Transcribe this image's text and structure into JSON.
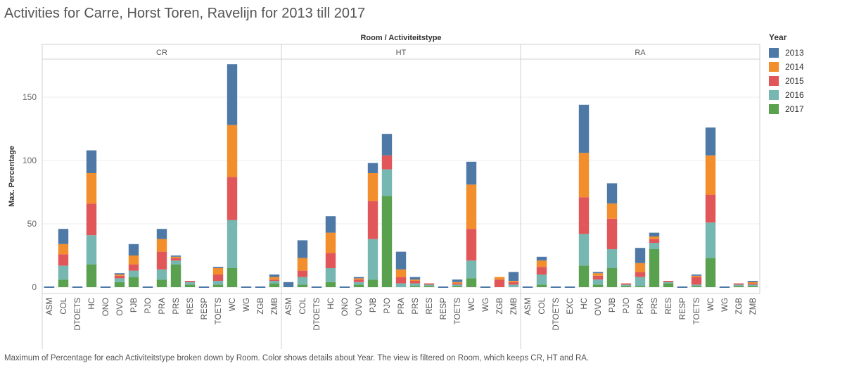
{
  "title": "Activities for Carre, Horst Toren, Ravelijn for 2013 till 2017",
  "caption": "Maximum of Percentage for each Activiteitstype broken down by Room.  Color shows details about Year. The view is filtered on Room, which keeps CR, HT and RA.",
  "legend": {
    "title": "Year",
    "items": [
      {
        "label": "2013",
        "color": "#4e79a7"
      },
      {
        "label": "2014",
        "color": "#f28e2b"
      },
      {
        "label": "2015",
        "color": "#e15759"
      },
      {
        "label": "2016",
        "color": "#76b7b2"
      },
      {
        "label": "2017",
        "color": "#59a14f"
      }
    ]
  },
  "chart_data": {
    "type": "bar",
    "stacked": true,
    "header": "Room / Activiteitstype",
    "ylabel": "Max. Percentage",
    "ylim": [
      -5,
      180
    ],
    "yticks": [
      0,
      50,
      100,
      150
    ],
    "grid": true,
    "legend_position": "right",
    "stack_order_bottom_to_top": [
      "2017",
      "2016",
      "2015",
      "2014",
      "2013"
    ],
    "panels": [
      {
        "room": "CR",
        "categories": [
          "ASM",
          "COL",
          "DTOETS",
          "HC",
          "ONO",
          "OVO",
          "PJB",
          "PJO",
          "PRA",
          "PRS",
          "RES",
          "RESP",
          "TOETS",
          "WC",
          "WG",
          "ZGB",
          "ZMB"
        ],
        "series": [
          {
            "name": "2017",
            "values": [
              0,
              6,
              0,
              18,
              0,
              4,
              8,
              0,
              6,
              18,
              2,
              0,
              2,
              15,
              0,
              0,
              3
            ]
          },
          {
            "name": "2016",
            "values": [
              0,
              11,
              0,
              23,
              0,
              3,
              5,
              0,
              8,
              3,
              2,
              0,
              3,
              38,
              0,
              0,
              2
            ]
          },
          {
            "name": "2015",
            "values": [
              0,
              9,
              0,
              25,
              0,
              2,
              5,
              0,
              14,
              2,
              1,
              0,
              5,
              34,
              0,
              0,
              1
            ]
          },
          {
            "name": "2014",
            "values": [
              0,
              8,
              0,
              24,
              0,
              1,
              7,
              0,
              10,
              1,
              0,
              0,
              5,
              41,
              0,
              0,
              2
            ]
          },
          {
            "name": "2013",
            "values": [
              0,
              12,
              0,
              18,
              0,
              1,
              9,
              0,
              8,
              1,
              0,
              0,
              1,
              48,
              0,
              0,
              2
            ]
          }
        ]
      },
      {
        "room": "HT",
        "categories": [
          "ASM",
          "COL",
          "DTOETS",
          "HC",
          "ONO",
          "OVO",
          "PJB",
          "PJO",
          "PRA",
          "PRS",
          "RES",
          "RESP",
          "TOETS",
          "WC",
          "WG",
          "ZGB",
          "ZMB"
        ],
        "series": [
          {
            "name": "2017",
            "values": [
              0,
              2,
              0,
              4,
              0,
              2,
              6,
              72,
              0,
              1,
              1,
              0,
              1,
              7,
              0,
              0,
              0
            ]
          },
          {
            "name": "2016",
            "values": [
              0,
              6,
              0,
              11,
              0,
              2,
              32,
              21,
              3,
              2,
              1,
              0,
              1,
              14,
              0,
              0,
              2
            ]
          },
          {
            "name": "2015",
            "values": [
              0,
              5,
              0,
              12,
              0,
              2,
              30,
              11,
              5,
              2,
              1,
              0,
              1,
              25,
              0,
              6,
              2
            ]
          },
          {
            "name": "2014",
            "values": [
              0,
              10,
              0,
              16,
              0,
              1,
              22,
              0,
              6,
              1,
              0,
              0,
              1,
              35,
              0,
              2,
              1
            ]
          },
          {
            "name": "2013",
            "values": [
              4,
              14,
              0,
              13,
              0,
              1,
              8,
              17,
              14,
              2,
              0,
              0,
              2,
              18,
              0,
              0,
              7
            ]
          }
        ]
      },
      {
        "room": "RA",
        "categories": [
          "ASM",
          "COL",
          "DTOETS",
          "EXC",
          "HC",
          "OVO",
          "PJB",
          "PJO",
          "PRA",
          "PRS",
          "RES",
          "RESP",
          "TOETS",
          "WC",
          "WG",
          "ZGB",
          "ZMB"
        ],
        "series": [
          {
            "name": "2017",
            "values": [
              0,
              2,
              0,
              0,
              17,
              2,
              15,
              1,
              1,
              30,
              3,
              0,
              1,
              23,
              0,
              1,
              1
            ]
          },
          {
            "name": "2016",
            "values": [
              0,
              8,
              0,
              0,
              25,
              4,
              15,
              1,
              7,
              5,
              1,
              0,
              1,
              28,
              0,
              1,
              1
            ]
          },
          {
            "name": "2015",
            "values": [
              0,
              6,
              0,
              0,
              29,
              3,
              24,
              1,
              4,
              3,
              1,
              0,
              6,
              22,
              0,
              1,
              1
            ]
          },
          {
            "name": "2014",
            "values": [
              0,
              5,
              0,
              0,
              35,
              2,
              12,
              0,
              7,
              2,
              0,
              0,
              1,
              31,
              0,
              0,
              1
            ]
          },
          {
            "name": "2013",
            "values": [
              0,
              3,
              0,
              0,
              38,
              1,
              16,
              0,
              12,
              3,
              0,
              0,
              1,
              22,
              0,
              0,
              1
            ]
          }
        ]
      }
    ]
  }
}
